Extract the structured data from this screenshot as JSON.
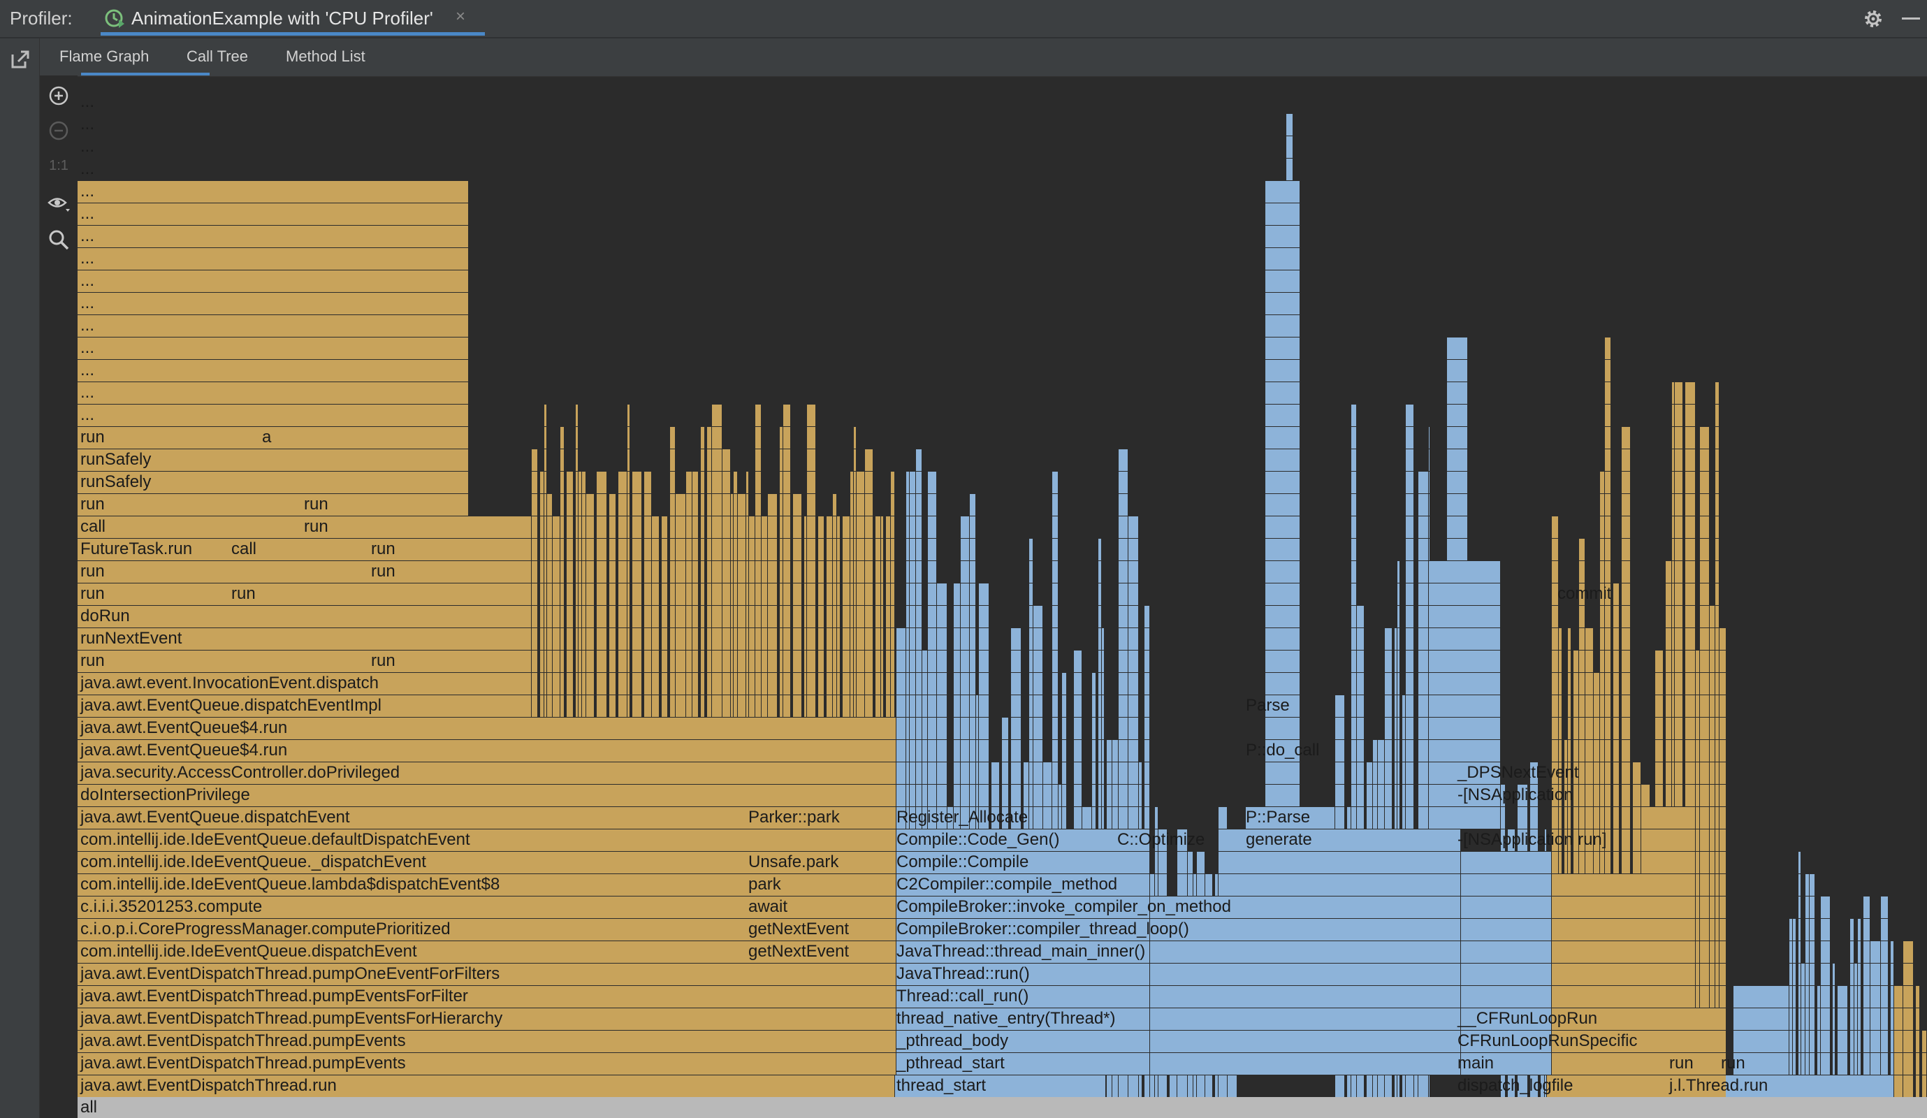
{
  "titlebar": {
    "label": "Profiler:",
    "session_title": "AnimationExample with 'CPU Profiler'",
    "close_glyph": "×"
  },
  "tabs": [
    {
      "label": "Flame Graph",
      "selected": true
    },
    {
      "label": "Call Tree",
      "selected": false
    },
    {
      "label": "Method List",
      "selected": false
    }
  ],
  "tools": [
    "zoom-in-icon",
    "zoom-out-icon",
    "actual-size-icon",
    "visibility-icon",
    "search-icon"
  ],
  "tool_one_to_one": "1:1",
  "colors": {
    "java_frame": "#c8a35b",
    "native_frame": "#8db3d9",
    "root_frame": "#b9b9b9",
    "accent": "#4a88c7"
  },
  "flame": {
    "root_label": "all",
    "labels": [
      {
        "id": "l0",
        "text": "run"
      },
      {
        "id": "l1",
        "text": "runSafely"
      },
      {
        "id": "l2",
        "text": "runSafely"
      },
      {
        "id": "l3",
        "text": "run"
      },
      {
        "id": "l4",
        "text": "call"
      },
      {
        "id": "l5",
        "text": "FutureTask.run"
      },
      {
        "id": "l6",
        "text": "run"
      },
      {
        "id": "l7",
        "text": "run"
      },
      {
        "id": "l8",
        "text": "doRun"
      },
      {
        "id": "l9",
        "text": "runNextEvent"
      },
      {
        "id": "l10",
        "text": "run"
      },
      {
        "id": "l11",
        "text": "java.awt.event.InvocationEvent.dispatch"
      },
      {
        "id": "l12",
        "text": "java.awt.EventQueue.dispatchEventImpl"
      },
      {
        "id": "l13",
        "text": "java.awt.EventQueue$4.run"
      },
      {
        "id": "l14",
        "text": "java.awt.EventQueue$4.run"
      },
      {
        "id": "l15",
        "text": "java.security.AccessController.doPrivileged"
      },
      {
        "id": "l16",
        "text": "doIntersectionPrivilege"
      },
      {
        "id": "l17",
        "text": "java.awt.EventQueue.dispatchEvent"
      },
      {
        "id": "l18",
        "text": "com.intellij.ide.IdeEventQueue.defaultDispatchEvent"
      },
      {
        "id": "l19",
        "text": "com.intellij.ide.IdeEventQueue._dispatchEvent"
      },
      {
        "id": "l20",
        "text": "com.intellij.ide.IdeEventQueue.lambda$dispatchEvent$8"
      },
      {
        "id": "l21",
        "text": "c.i.i.i.35201253.compute"
      },
      {
        "id": "l22",
        "text": "c.i.o.p.i.CoreProgressManager.computePrioritized"
      },
      {
        "id": "l23",
        "text": "com.intellij.ide.IdeEventQueue.dispatchEvent"
      },
      {
        "id": "l24",
        "text": "java.awt.EventDispatchThread.pumpOneEventForFilters"
      },
      {
        "id": "l25",
        "text": "java.awt.EventDispatchThread.pumpEventsForFilter"
      },
      {
        "id": "l26",
        "text": "java.awt.EventDispatchThread.pumpEventsForHierarchy"
      },
      {
        "id": "l27",
        "text": "java.awt.EventDispatchThread.pumpEvents"
      },
      {
        "id": "l28",
        "text": "java.awt.EventDispatchThread.pumpEvents"
      },
      {
        "id": "l29",
        "text": "java.awt.EventDispatchThread.run"
      },
      {
        "id": "l30",
        "text": "a"
      },
      {
        "id": "l31",
        "text": "call"
      },
      {
        "id": "l32",
        "text": "run"
      },
      {
        "id": "l33",
        "text": "run"
      },
      {
        "id": "l34",
        "text": "run"
      },
      {
        "id": "l35",
        "text": "run"
      },
      {
        "id": "l36",
        "text": "run"
      },
      {
        "id": "l37",
        "text": "run"
      },
      {
        "id": "l38",
        "text": "Parker::park"
      },
      {
        "id": "l39",
        "text": "Unsafe.park"
      },
      {
        "id": "l40",
        "text": "park"
      },
      {
        "id": "l41",
        "text": "await"
      },
      {
        "id": "l42",
        "text": "getNextEvent"
      },
      {
        "id": "l43",
        "text": "getNextEvent"
      },
      {
        "id": "l44",
        "text": "Register_Allocate"
      },
      {
        "id": "l45",
        "text": "Compile::Code_Gen()"
      },
      {
        "id": "l46",
        "text": "C::Optimize"
      },
      {
        "id": "l47",
        "text": "generate"
      },
      {
        "id": "l48",
        "text": "P::Parse"
      },
      {
        "id": "l49",
        "text": "P::do_call"
      },
      {
        "id": "l50",
        "text": "Parse"
      },
      {
        "id": "l51",
        "text": "Compile::Compile"
      },
      {
        "id": "l52",
        "text": "C2Compiler::compile_method"
      },
      {
        "id": "l53",
        "text": "CompileBroker::invoke_compiler_on_method"
      },
      {
        "id": "l54",
        "text": "CompileBroker::compiler_thread_loop()"
      },
      {
        "id": "l55",
        "text": "JavaThread::thread_main_inner()"
      },
      {
        "id": "l56",
        "text": "JavaThread::run()"
      },
      {
        "id": "l57",
        "text": "Thread::call_run()"
      },
      {
        "id": "l58",
        "text": "thread_native_entry(Thread*)"
      },
      {
        "id": "l59",
        "text": "_pthread_body"
      },
      {
        "id": "l60",
        "text": "_pthread_start"
      },
      {
        "id": "l61",
        "text": "thread_start"
      },
      {
        "id": "l62",
        "text": "_DPSNextEvent"
      },
      {
        "id": "l63",
        "text": "-[NSApplication"
      },
      {
        "id": "l64",
        "text": "-[NSApplication run]"
      },
      {
        "id": "l65",
        "text": "__CFRunLoopRun"
      },
      {
        "id": "l66",
        "text": "CFRunLoopRunSpecific"
      },
      {
        "id": "l67",
        "text": "main"
      },
      {
        "id": "l68",
        "text": "dispatch_logfile"
      },
      {
        "id": "l69",
        "text": "commit"
      },
      {
        "id": "l70",
        "text": "run"
      },
      {
        "id": "l71",
        "text": "run"
      },
      {
        "id": "l72",
        "text": "j.l.Thread.run"
      },
      {
        "id": "l73",
        "text": "..."
      }
    ]
  }
}
